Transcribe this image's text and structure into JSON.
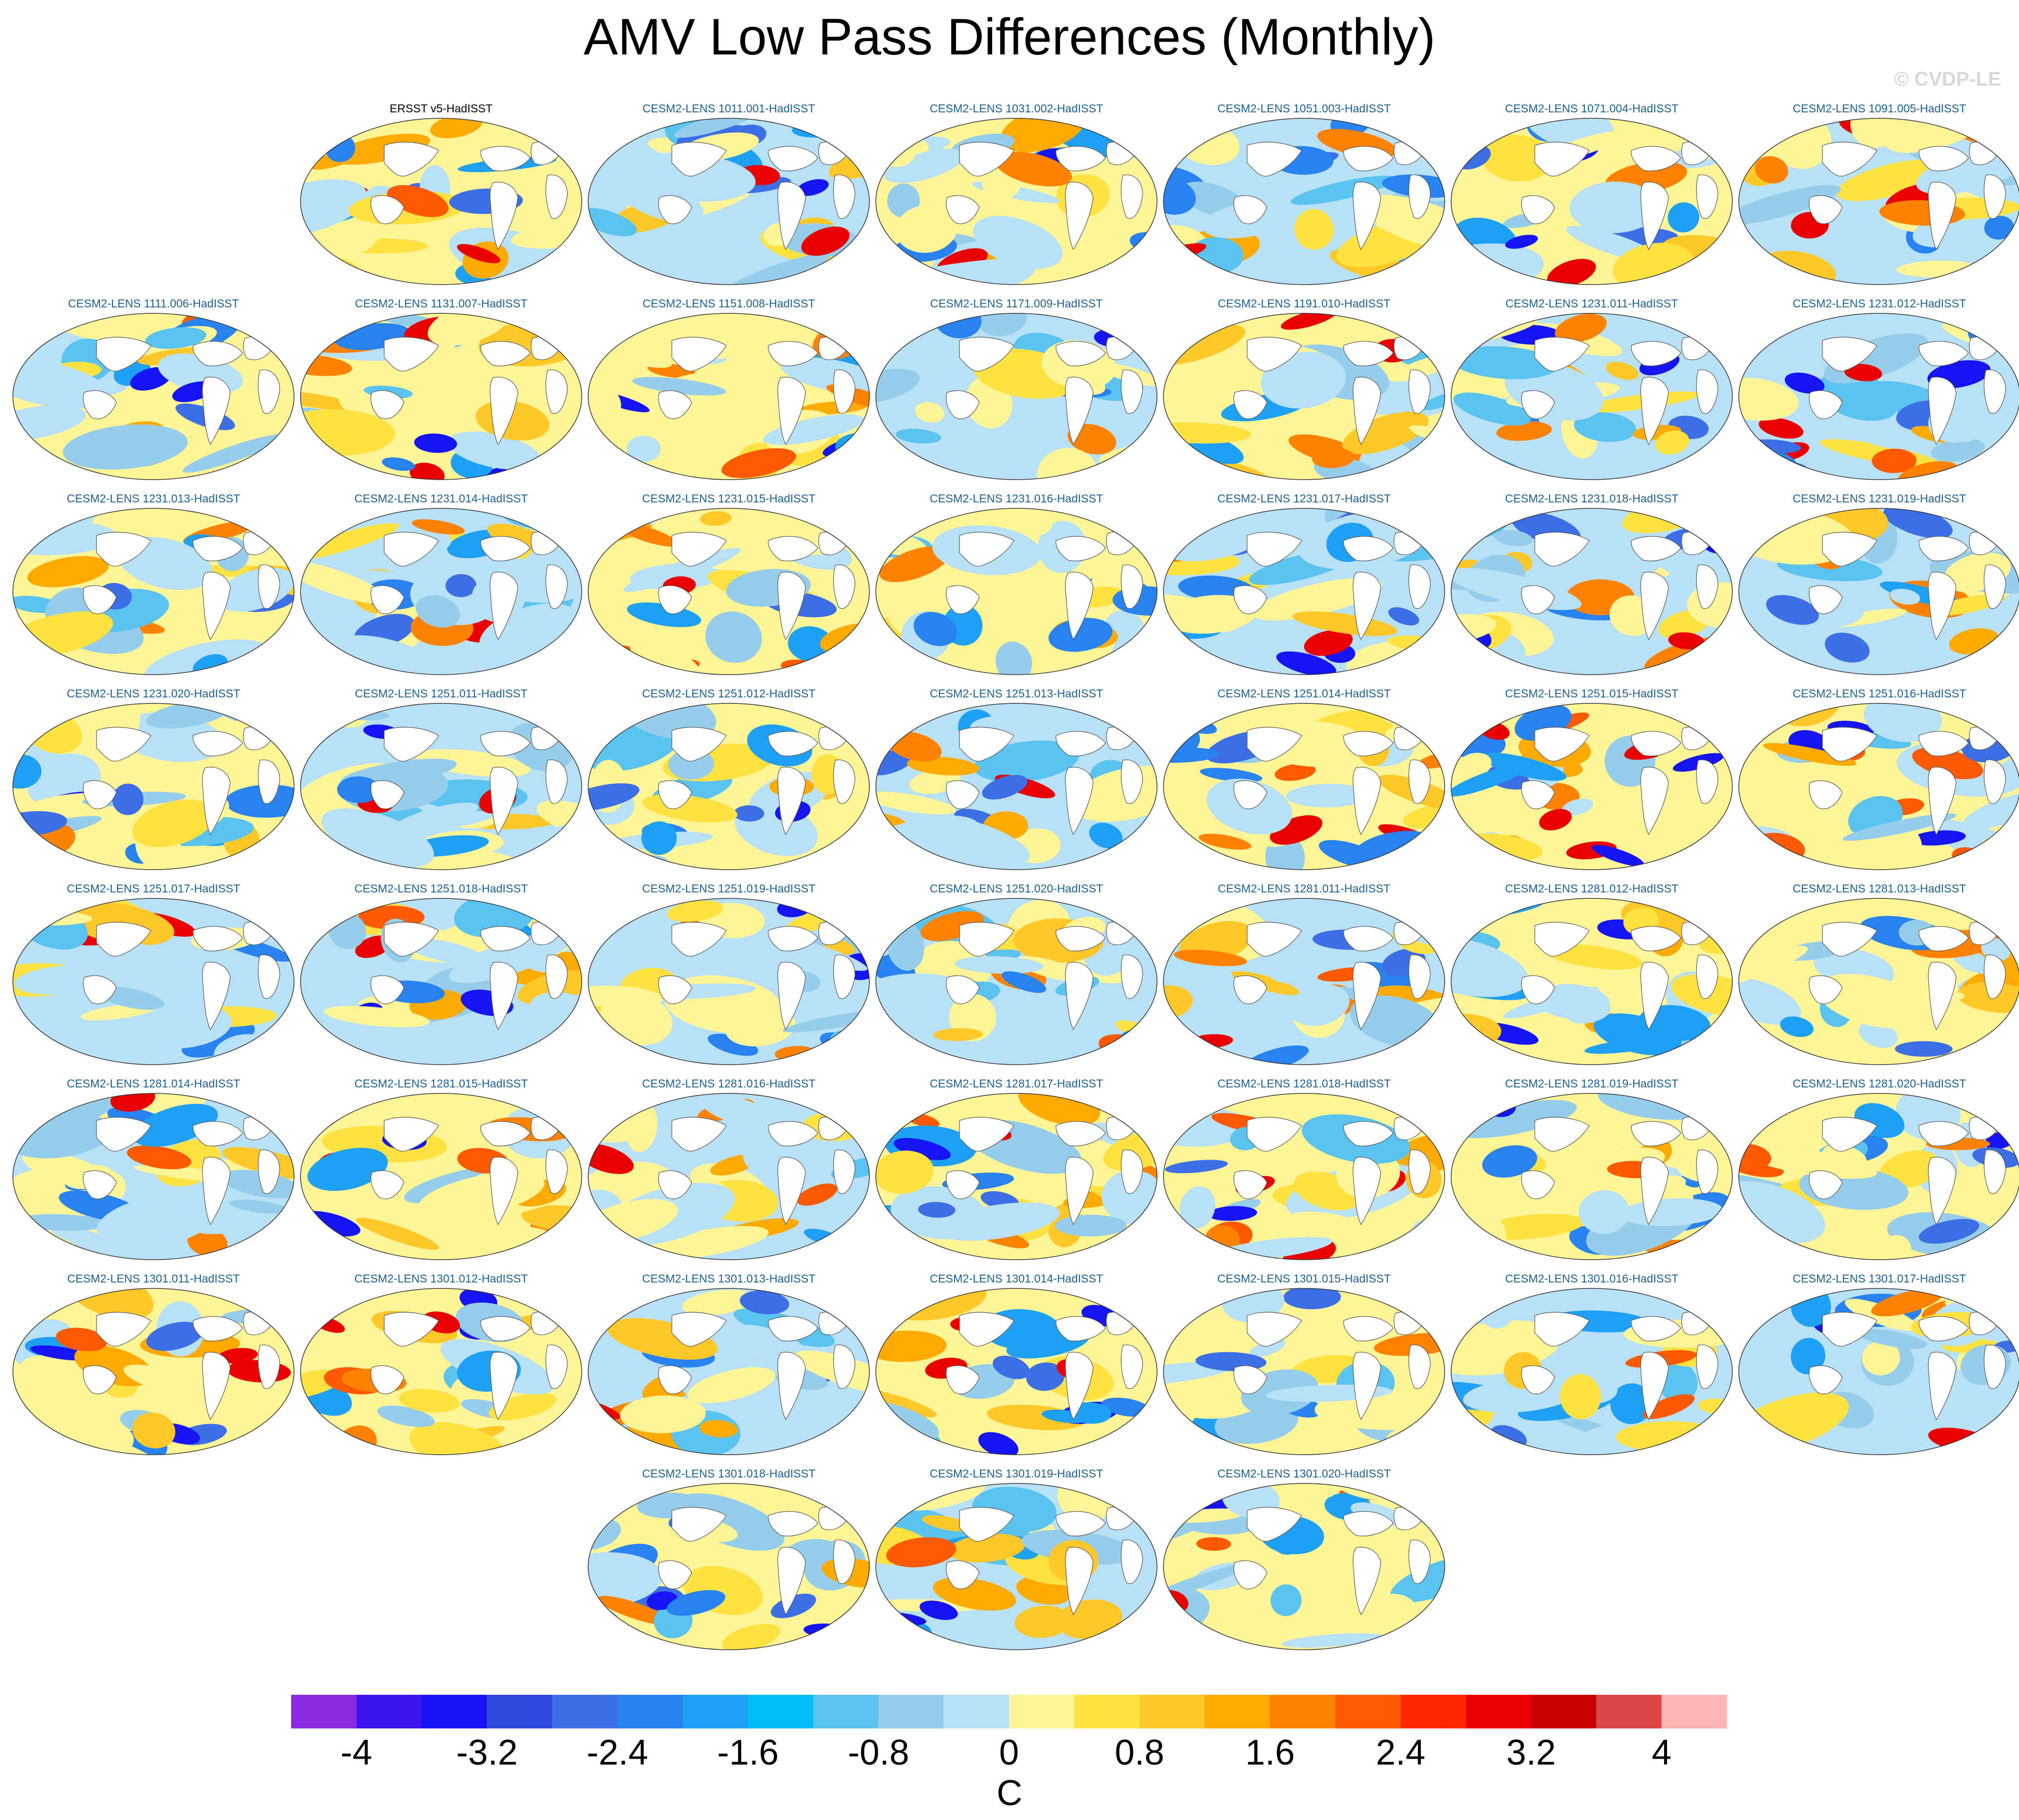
{
  "title": "AMV Low Pass Differences (Monthly)",
  "watermark": "© CVDP-LE",
  "obs_panel": "ERSST v5-HadISST",
  "member_panels": [
    "CESM2-LENS 1011.001-HadISST",
    "CESM2-LENS 1031.002-HadISST",
    "CESM2-LENS 1051.003-HadISST",
    "CESM2-LENS 1071.004-HadISST",
    "CESM2-LENS 1091.005-HadISST",
    "CESM2-LENS 1111.006-HadISST",
    "CESM2-LENS 1131.007-HadISST",
    "CESM2-LENS 1151.008-HadISST",
    "CESM2-LENS 1171.009-HadISST",
    "CESM2-LENS 1191.010-HadISST",
    "CESM2-LENS 1231.011-HadISST",
    "CESM2-LENS 1231.012-HadISST",
    "CESM2-LENS 1231.013-HadISST",
    "CESM2-LENS 1231.014-HadISST",
    "CESM2-LENS 1231.015-HadISST",
    "CESM2-LENS 1231.016-HadISST",
    "CESM2-LENS 1231.017-HadISST",
    "CESM2-LENS 1231.018-HadISST",
    "CESM2-LENS 1231.019-HadISST",
    "CESM2-LENS 1231.020-HadISST",
    "CESM2-LENS 1251.011-HadISST",
    "CESM2-LENS 1251.012-HadISST",
    "CESM2-LENS 1251.013-HadISST",
    "CESM2-LENS 1251.014-HadISST",
    "CESM2-LENS 1251.015-HadISST",
    "CESM2-LENS 1251.016-HadISST",
    "CESM2-LENS 1251.017-HadISST",
    "CESM2-LENS 1251.018-HadISST",
    "CESM2-LENS 1251.019-HadISST",
    "CESM2-LENS 1251.020-HadISST",
    "CESM2-LENS 1281.011-HadISST",
    "CESM2-LENS 1281.012-HadISST",
    "CESM2-LENS 1281.013-HadISST",
    "CESM2-LENS 1281.014-HadISST",
    "CESM2-LENS 1281.015-HadISST",
    "CESM2-LENS 1281.016-HadISST",
    "CESM2-LENS 1281.017-HadISST",
    "CESM2-LENS 1281.018-HadISST",
    "CESM2-LENS 1281.019-HadISST",
    "CESM2-LENS 1281.020-HadISST",
    "CESM2-LENS 1301.011-HadISST",
    "CESM2-LENS 1301.012-HadISST",
    "CESM2-LENS 1301.013-HadISST",
    "CESM2-LENS 1301.014-HadISST",
    "CESM2-LENS 1301.015-HadISST",
    "CESM2-LENS 1301.016-HadISST",
    "CESM2-LENS 1301.017-HadISST",
    "CESM2-LENS 1301.018-HadISST",
    "CESM2-LENS 1301.019-HadISST",
    "CESM2-LENS 1301.020-HadISST"
  ],
  "colorbar": {
    "unit": "C",
    "tick_labels": [
      "-4",
      "-3.2",
      "-2.4",
      "-1.6",
      "-0.8",
      "0",
      "0.8",
      "1.6",
      "2.4",
      "3.2",
      "4"
    ],
    "colors": [
      "#8a2be2",
      "#3c14f0",
      "#1414f5",
      "#2d4bdc",
      "#3c6ee6",
      "#2882f0",
      "#1ea0f5",
      "#00bef5",
      "#5ac3f0",
      "#96cdeb",
      "#b9e1f5",
      "#fff596",
      "#ffe141",
      "#ffc828",
      "#ffaa00",
      "#ff8200",
      "#ff5a00",
      "#ff2800",
      "#eb0000",
      "#c80000",
      "#dc4646",
      "#ffb4b4"
    ]
  }
}
